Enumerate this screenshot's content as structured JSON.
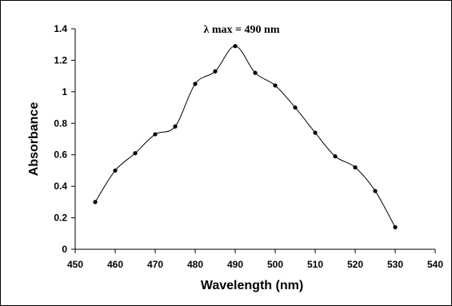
{
  "chart_data": {
    "type": "line",
    "title": "",
    "xlabel": "Wavelength (nm)",
    "ylabel": "Absorbance",
    "annotation": "λ max = 490 nm",
    "xlim": [
      450,
      540
    ],
    "ylim": [
      0,
      1.4
    ],
    "xticks": [
      450,
      460,
      470,
      480,
      490,
      500,
      510,
      520,
      530,
      540
    ],
    "yticks": [
      0,
      0.2,
      0.4,
      0.6,
      0.8,
      1,
      1.2,
      1.4
    ],
    "xtick_labels": [
      "450",
      "460",
      "470",
      "480",
      "490",
      "500",
      "510",
      "520",
      "530",
      "540"
    ],
    "ytick_labels": [
      "0",
      "0.2",
      "0.4",
      "0.6",
      "0.8",
      "1",
      "1.2",
      "1.4"
    ],
    "grid": false,
    "legend": "none",
    "line_color": "#000000",
    "marker_color": "#000000",
    "smooth": true,
    "series": [
      {
        "x": [
          455,
          460,
          465,
          470,
          475,
          480,
          485,
          490,
          495,
          500,
          505,
          510,
          515,
          520,
          525,
          530
        ],
        "values": [
          0.3,
          0.5,
          0.61,
          0.73,
          0.78,
          1.05,
          1.13,
          1.29,
          1.12,
          1.04,
          0.9,
          0.74,
          0.59,
          0.52,
          0.37,
          0.14
        ]
      }
    ]
  }
}
